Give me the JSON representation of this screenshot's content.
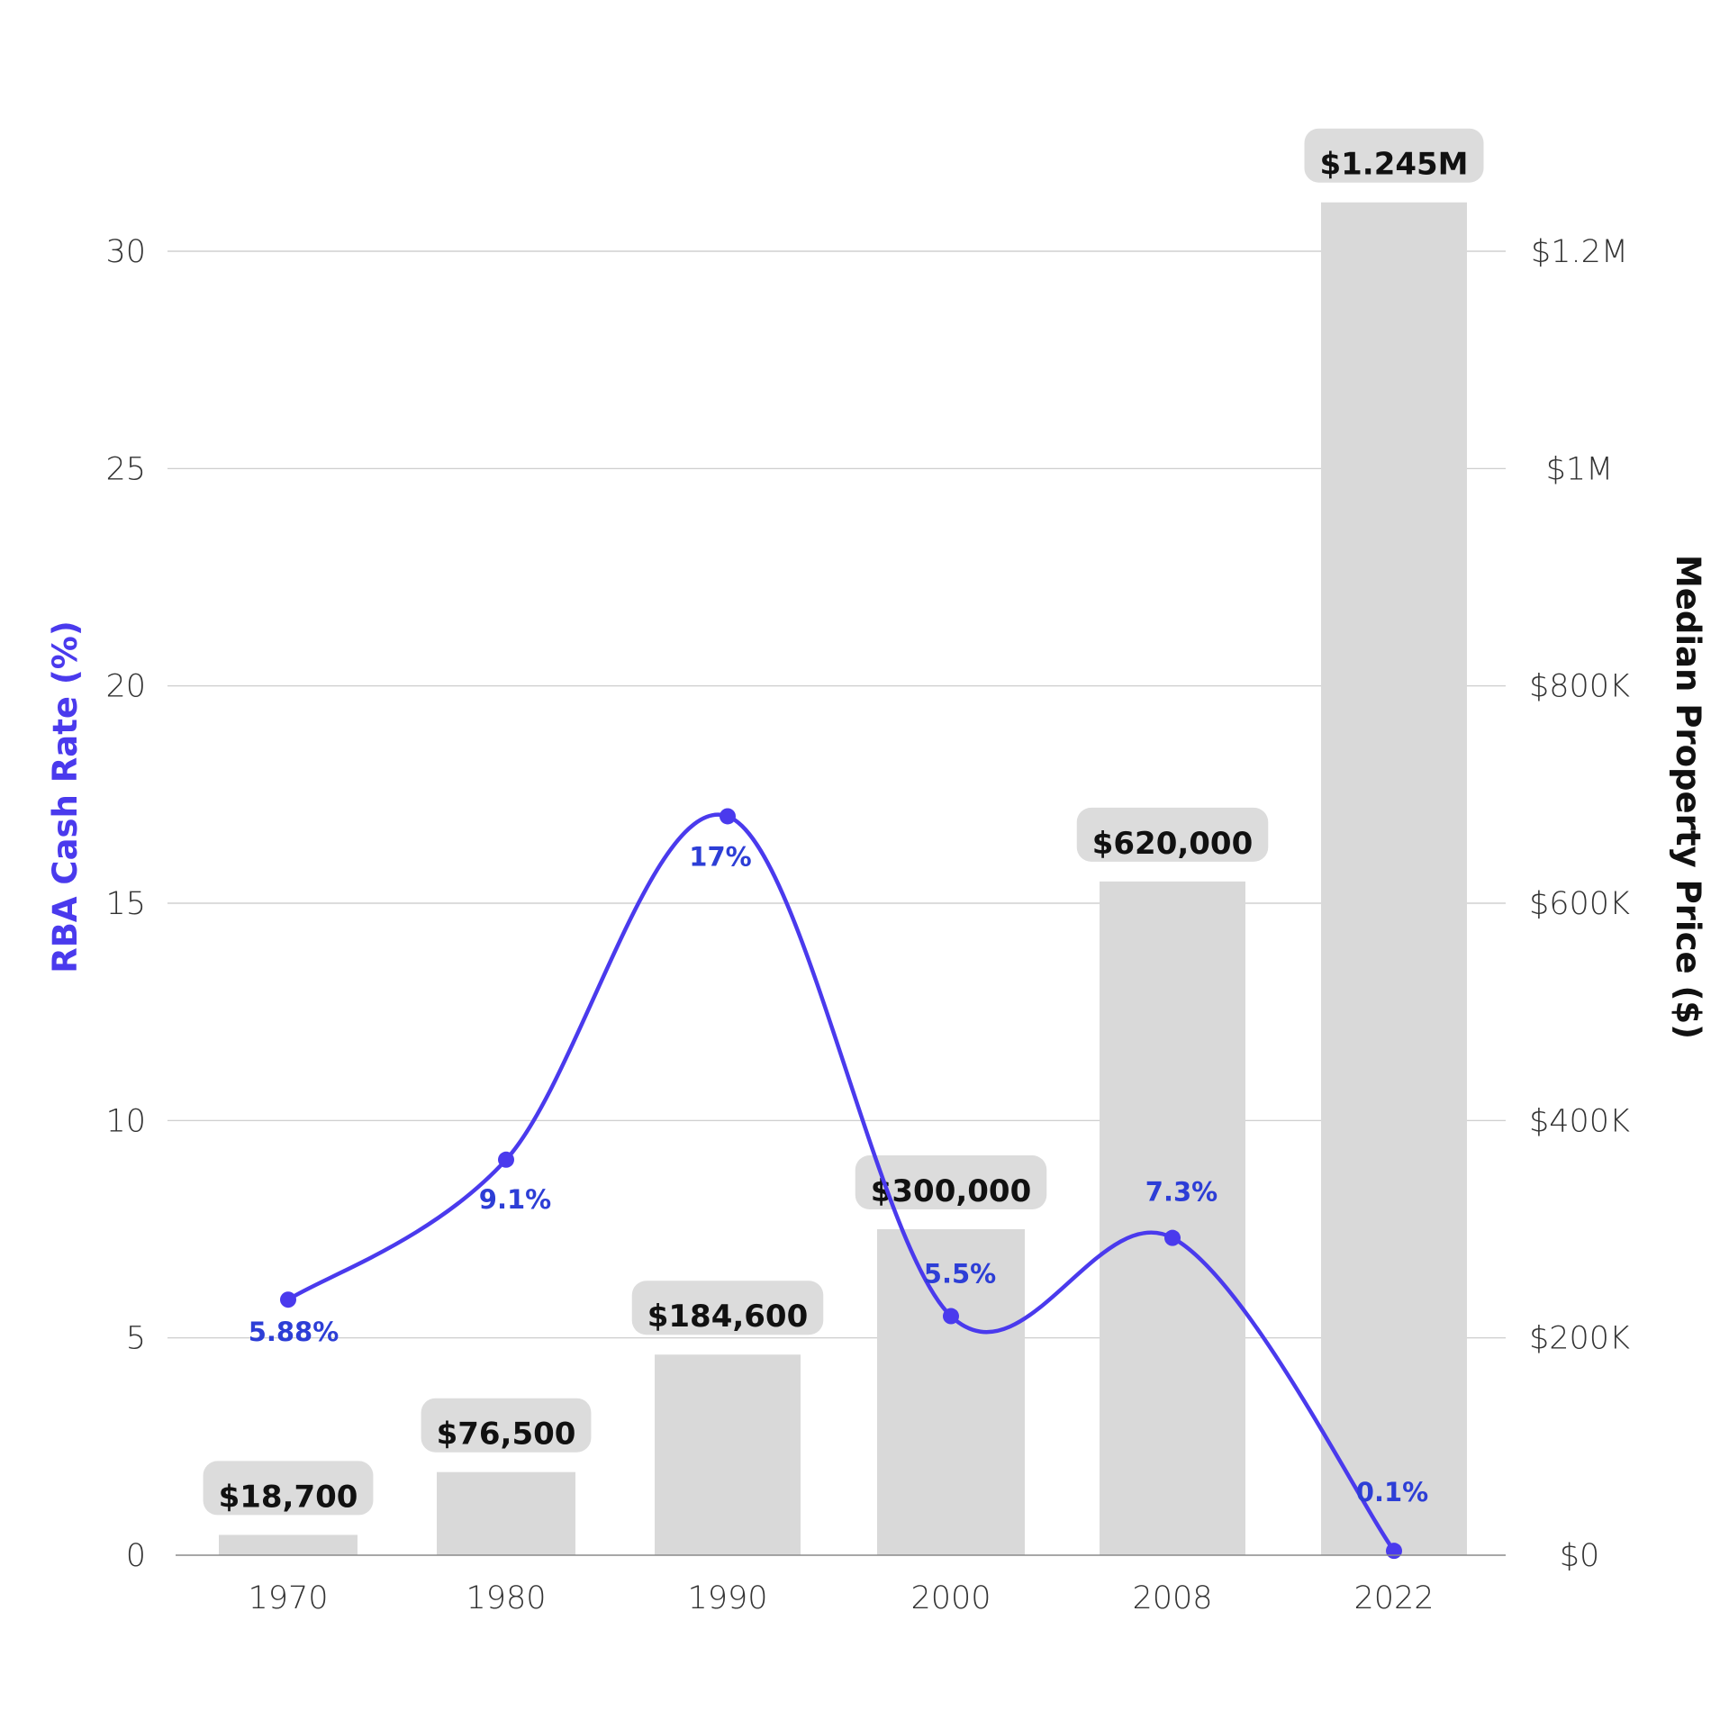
{
  "chart_data": {
    "type": "bar",
    "categories": [
      "1970",
      "1980",
      "1990",
      "2000",
      "2008",
      "2022"
    ],
    "series": [
      {
        "name": "Median Property Price ($)",
        "type": "bar",
        "axis": "right",
        "values": [
          18700,
          76500,
          184600,
          300000,
          620000,
          1245000
        ],
        "labels": [
          "$18,700",
          "$76,500",
          "$184,600",
          "$300,000",
          "$620,000",
          "$1.245M"
        ]
      },
      {
        "name": "RBA Cash Rate (%)",
        "type": "line",
        "axis": "left",
        "values": [
          5.88,
          9.1,
          17,
          5.5,
          7.3,
          0.1
        ],
        "labels": [
          "5.88%",
          "9.1%",
          "17%",
          "5.5%",
          "7.3%",
          "0.1%"
        ]
      }
    ],
    "left_axis": {
      "label": "RBA Cash Rate (%)",
      "range": [
        0,
        30
      ],
      "ticks": [
        0,
        5,
        10,
        15,
        20,
        25,
        30
      ],
      "tick_labels": [
        "0",
        "5",
        "10",
        "15",
        "20",
        "25",
        "30"
      ],
      "color": "#4a3aed"
    },
    "right_axis": {
      "label": "Median Property Price ($)",
      "range": [
        0,
        1200000
      ],
      "ticks": [
        0,
        200000,
        400000,
        600000,
        800000,
        1000000,
        1200000
      ],
      "tick_labels": [
        "$0",
        "$200K",
        "$400K",
        "$600K",
        "$800K",
        "$1M",
        "$1.2M"
      ],
      "color": "#111111"
    },
    "grid": true,
    "colors": {
      "bar": "#d9d9d9",
      "bar_label_box": "#dcdcdc",
      "line": "#4a3aed",
      "line_label": "#2d3ed6"
    }
  }
}
